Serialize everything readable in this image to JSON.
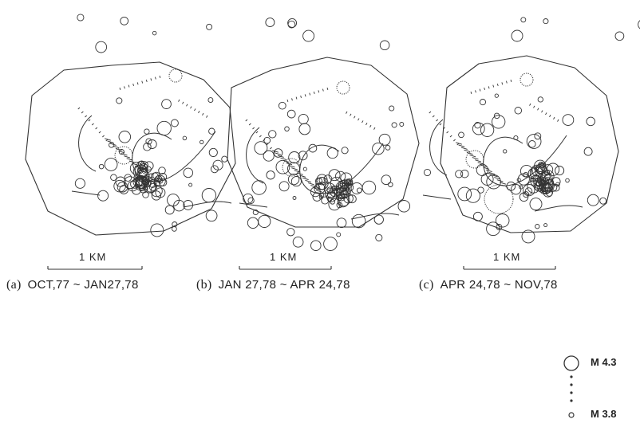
{
  "panels": [
    {
      "tag": "(a)",
      "period": "OCT,77 ~ JAN27,78",
      "scale": "1   KM"
    },
    {
      "tag": "(b)",
      "period": "JAN 27,78 ~ APR 24,78",
      "scale": "1   KM"
    },
    {
      "tag": "(c)",
      "period": "APR 24,78 ~ NOV,78",
      "scale": "1   KM"
    }
  ],
  "legend": {
    "max_label": "M 4.3",
    "min_label": "M 3.8"
  },
  "colors": {
    "ink": "#333333"
  }
}
